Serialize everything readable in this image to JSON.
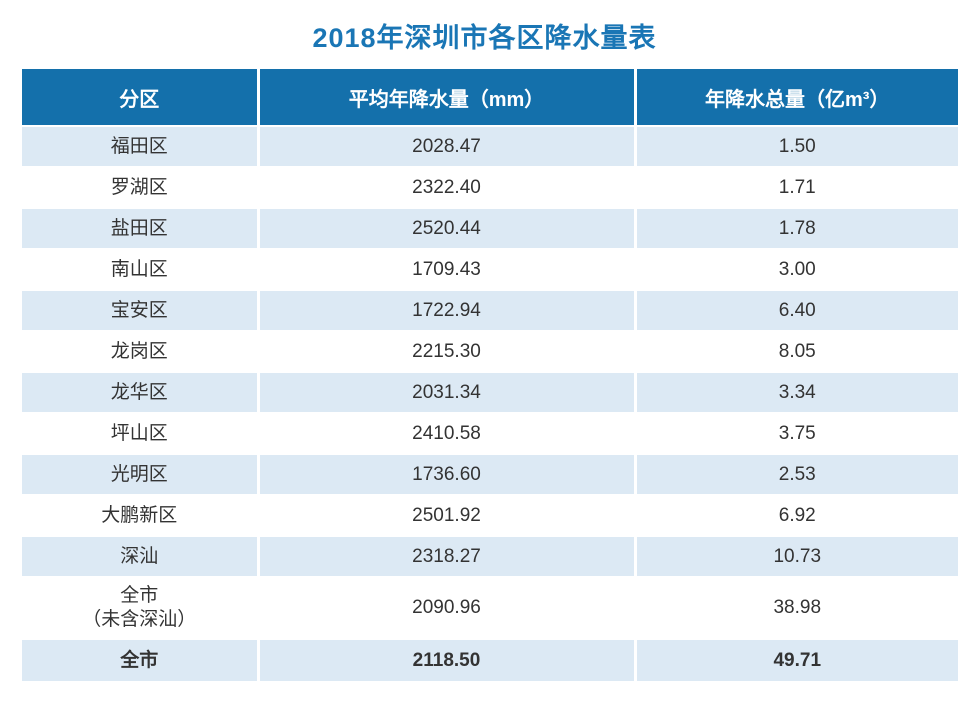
{
  "title": "2018年深圳市各区降水量表",
  "colors": {
    "title_blue": "#1a76b5",
    "header_blue": "#1470ab",
    "row_shade_blue": "#dce9f4",
    "cell_text": "#333333"
  },
  "chart_data": {
    "type": "table",
    "title": "2018年深圳市各区降水量表",
    "columns": [
      "分区",
      "平均年降水量（mm）",
      "年降水总量（亿m³）"
    ],
    "rows": [
      [
        "福田区",
        "2028.47",
        "1.50"
      ],
      [
        "罗湖区",
        "2322.40",
        "1.71"
      ],
      [
        "盐田区",
        "2520.44",
        "1.78"
      ],
      [
        "南山区",
        "1709.43",
        "3.00"
      ],
      [
        "宝安区",
        "1722.94",
        "6.40"
      ],
      [
        "龙岗区",
        "2215.30",
        "8.05"
      ],
      [
        "龙华区",
        "2031.34",
        "3.34"
      ],
      [
        "坪山区",
        "2410.58",
        "3.75"
      ],
      [
        "光明区",
        "1736.60",
        "2.53"
      ],
      [
        "大鹏新区",
        "2501.92",
        "6.92"
      ],
      [
        "深汕",
        "2318.27",
        "10.73"
      ],
      [
        "全市\n（未含深汕）",
        "2090.96",
        "38.98"
      ],
      [
        "全市",
        "2118.50",
        "49.71"
      ]
    ],
    "layout": {
      "zebra_striping": true,
      "shaded_row_indices": [
        0,
        2,
        4,
        6,
        8,
        10,
        12
      ],
      "bold_total_row_index": 12,
      "header_text_color": "#ffffff",
      "grid": "white-separators"
    }
  }
}
